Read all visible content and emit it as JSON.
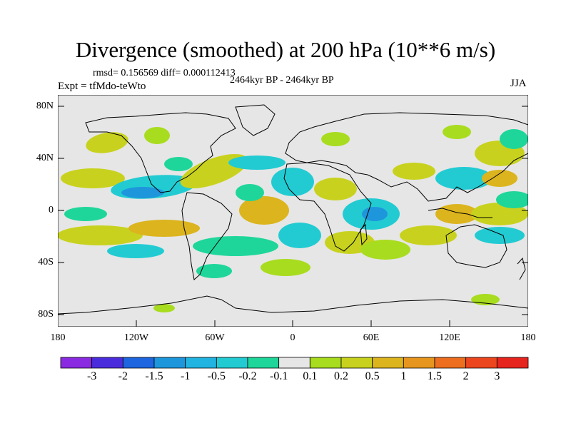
{
  "title": "Divergence (smoothed) at 200 hPa (10**6 m/s)",
  "stats": "rmsd= 0.156569 diff= 0.000112413",
  "experiment": "Expt = tfMdo-teWto",
  "period": "2464kyr BP - 2464kyr BP",
  "season": "JJA",
  "axes": {
    "lat_labels": [
      "80N",
      "40N",
      "0",
      "40S",
      "80S"
    ],
    "lon_labels": [
      "180",
      "120W",
      "60W",
      "0",
      "60E",
      "120E",
      "180"
    ]
  },
  "colorbar": {
    "labels": [
      "-3",
      "-2",
      "-1.5",
      "-1",
      "-0.5",
      "-0.2",
      "-0.1",
      "0.1",
      "0.2",
      "0.5",
      "1",
      "1.5",
      "2",
      "3"
    ],
    "colors": [
      "#8a2be2",
      "#4b2cdc",
      "#1e66e0",
      "#1e96dc",
      "#21b4e0",
      "#22cbd2",
      "#1fd69a",
      "#e6e6e6",
      "#a8dc1e",
      "#c8d21e",
      "#dcb41e",
      "#e6961e",
      "#ec6e1e",
      "#ec461e",
      "#e6261e"
    ]
  },
  "field_colors": {
    "background": "#e6e6e6",
    "pos_weak": "#a8dc1e",
    "pos_mid": "#c8d21e",
    "pos_strong": "#dcb41e",
    "neg_weak": "#1fd69a",
    "neg_mid": "#22cbd2",
    "neg_strong": "#1e96dc"
  }
}
